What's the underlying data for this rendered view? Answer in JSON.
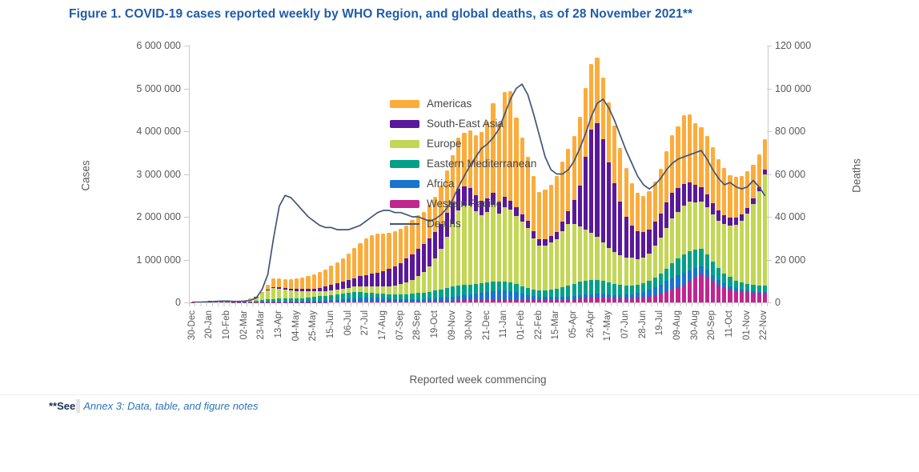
{
  "figure": {
    "title": "Figure 1. COVID-19 cases reported weekly by WHO Region, and global deaths, as of 28 November 2021**"
  },
  "axes": {
    "left_title": "Cases",
    "right_title": "Deaths",
    "x_title": "Reported week commencing",
    "y_left_ticks": [
      "0",
      "1 000 000",
      "2 000 000",
      "3 000 000",
      "4 000 000",
      "5 000 000",
      "6 000 000"
    ],
    "y_right_ticks": [
      "0",
      "20 000",
      "40 000",
      "60 000",
      "80 000",
      "100 000",
      "120 000"
    ]
  },
  "footnote": {
    "prefix": "**See",
    "link_text": "Annex 3: Data, table, and figure notes"
  },
  "chart_data": {
    "type": "bar",
    "subtype": "stacked-weekly-bars-with-deaths-line",
    "title": "COVID-19 cases reported weekly by WHO Region, and global deaths, as of 28 November 2021",
    "xlabel": "Reported week commencing",
    "ylabel_left": "Cases",
    "ylabel_right": "Deaths",
    "cases_axis": {
      "min": 0,
      "max": 6000000
    },
    "deaths_axis": {
      "min": 0,
      "max": 120000
    },
    "weeks_count": 100,
    "x_tick_every": 3,
    "x_tick_labels": [
      "30-Dec",
      "20-Jan",
      "10-Feb",
      "02-Mar",
      "23-Mar",
      "13-Apr",
      "04-May",
      "25-May",
      "15-Jun",
      "06-Jul",
      "27-Jul",
      "17-Aug",
      "07-Sep",
      "28-Sep",
      "19-Oct",
      "09-Nov",
      "30-Nov",
      "21-Dec",
      "11-Jan",
      "01-Feb",
      "22-Feb",
      "15-Mar",
      "05-Apr",
      "26-Apr",
      "17-May",
      "07-Jun",
      "28-Jun",
      "19-Jul",
      "09-Aug",
      "30-Aug",
      "20-Sep",
      "11-Oct",
      "01-Nov",
      "22-Nov"
    ],
    "cases_unit": "millions of cases per week (stacked, bottom to top)",
    "series": [
      {
        "name": "Western Pacific",
        "color": "#C0268F",
        "values": [
          0.005,
          0.01,
          0.02,
          0.025,
          0.03,
          0.015,
          0.01,
          0.005,
          0.004,
          0.003,
          0.003,
          0.004,
          0.006,
          0.008,
          0.008,
          0.006,
          0.005,
          0.005,
          0.005,
          0.005,
          0.006,
          0.007,
          0.008,
          0.009,
          0.01,
          0.012,
          0.014,
          0.016,
          0.018,
          0.02,
          0.022,
          0.025,
          0.03,
          0.03,
          0.03,
          0.028,
          0.026,
          0.025,
          0.025,
          0.026,
          0.028,
          0.03,
          0.033,
          0.036,
          0.04,
          0.045,
          0.05,
          0.055,
          0.06,
          0.06,
          0.062,
          0.065,
          0.068,
          0.07,
          0.072,
          0.07,
          0.065,
          0.06,
          0.055,
          0.05,
          0.048,
          0.05,
          0.055,
          0.06,
          0.065,
          0.07,
          0.08,
          0.09,
          0.1,
          0.11,
          0.12,
          0.12,
          0.11,
          0.1,
          0.1,
          0.1,
          0.1,
          0.11,
          0.12,
          0.14,
          0.17,
          0.2,
          0.25,
          0.3,
          0.35,
          0.42,
          0.5,
          0.58,
          0.65,
          0.6,
          0.5,
          0.42,
          0.35,
          0.3,
          0.27,
          0.25,
          0.24,
          0.23,
          0.22,
          0.22
        ]
      },
      {
        "name": "Africa",
        "color": "#1874CC",
        "values": [
          0.001,
          0.001,
          0.001,
          0.001,
          0.001,
          0.001,
          0.001,
          0.001,
          0.001,
          0.002,
          0.003,
          0.005,
          0.008,
          0.01,
          0.015,
          0.02,
          0.02,
          0.02,
          0.025,
          0.025,
          0.03,
          0.03,
          0.035,
          0.04,
          0.045,
          0.05,
          0.06,
          0.07,
          0.08,
          0.09,
          0.09,
          0.085,
          0.08,
          0.07,
          0.06,
          0.055,
          0.05,
          0.045,
          0.045,
          0.05,
          0.05,
          0.055,
          0.06,
          0.07,
          0.08,
          0.09,
          0.1,
          0.11,
          0.12,
          0.14,
          0.16,
          0.18,
          0.2,
          0.21,
          0.21,
          0.2,
          0.18,
          0.15,
          0.12,
          0.1,
          0.08,
          0.075,
          0.07,
          0.07,
          0.07,
          0.07,
          0.075,
          0.08,
          0.08,
          0.08,
          0.08,
          0.08,
          0.075,
          0.07,
          0.07,
          0.08,
          0.09,
          0.11,
          0.13,
          0.16,
          0.19,
          0.22,
          0.25,
          0.27,
          0.28,
          0.27,
          0.25,
          0.22,
          0.19,
          0.16,
          0.13,
          0.11,
          0.09,
          0.08,
          0.06,
          0.05,
          0.04,
          0.035,
          0.03,
          0.03
        ]
      },
      {
        "name": "Eastern Mediterranean",
        "color": "#00A188",
        "values": [
          0.001,
          0.001,
          0.001,
          0.001,
          0.001,
          0.001,
          0.002,
          0.004,
          0.008,
          0.012,
          0.015,
          0.02,
          0.04,
          0.05,
          0.06,
          0.06,
          0.06,
          0.06,
          0.06,
          0.07,
          0.08,
          0.09,
          0.1,
          0.11,
          0.12,
          0.13,
          0.14,
          0.14,
          0.14,
          0.13,
          0.12,
          0.11,
          0.1,
          0.1,
          0.1,
          0.1,
          0.11,
          0.12,
          0.13,
          0.14,
          0.15,
          0.16,
          0.18,
          0.2,
          0.22,
          0.24,
          0.25,
          0.25,
          0.24,
          0.23,
          0.22,
          0.22,
          0.21,
          0.2,
          0.2,
          0.19,
          0.18,
          0.17,
          0.16,
          0.15,
          0.15,
          0.16,
          0.17,
          0.19,
          0.22,
          0.25,
          0.28,
          0.31,
          0.33,
          0.34,
          0.33,
          0.31,
          0.28,
          0.26,
          0.24,
          0.22,
          0.2,
          0.19,
          0.19,
          0.2,
          0.22,
          0.25,
          0.29,
          0.34,
          0.39,
          0.43,
          0.45,
          0.44,
          0.41,
          0.37,
          0.32,
          0.28,
          0.24,
          0.21,
          0.18,
          0.16,
          0.15,
          0.14,
          0.14,
          0.15
        ]
      },
      {
        "name": "Europe",
        "color": "#C3D655",
        "values": [
          0.001,
          0.001,
          0.001,
          0.001,
          0.001,
          0.001,
          0.002,
          0.004,
          0.008,
          0.02,
          0.05,
          0.09,
          0.15,
          0.22,
          0.25,
          0.24,
          0.22,
          0.2,
          0.18,
          0.16,
          0.14,
          0.13,
          0.12,
          0.11,
          0.11,
          0.11,
          0.11,
          0.12,
          0.13,
          0.14,
          0.15,
          0.16,
          0.17,
          0.18,
          0.19,
          0.21,
          0.24,
          0.28,
          0.33,
          0.4,
          0.48,
          0.6,
          0.75,
          0.95,
          1.2,
          1.45,
          1.75,
          1.85,
          1.85,
          1.7,
          1.6,
          1.65,
          1.8,
          1.6,
          1.75,
          1.7,
          1.6,
          1.5,
          1.4,
          1.2,
          1.05,
          1.05,
          1.1,
          1.15,
          1.3,
          1.45,
          1.4,
          1.3,
          1.2,
          1.1,
          1.0,
          0.9,
          0.8,
          0.75,
          0.7,
          0.65,
          0.65,
          0.6,
          0.6,
          0.65,
          0.75,
          0.85,
          0.95,
          1.05,
          1.1,
          1.15,
          1.15,
          1.1,
          1.1,
          1.1,
          1.1,
          1.1,
          1.15,
          1.2,
          1.3,
          1.45,
          1.65,
          1.9,
          2.2,
          2.6
        ]
      },
      {
        "name": "South-East Asia",
        "color": "#5A189A",
        "values": [
          0.001,
          0.001,
          0.001,
          0.001,
          0.001,
          0.001,
          0.001,
          0.002,
          0.003,
          0.005,
          0.008,
          0.01,
          0.012,
          0.015,
          0.02,
          0.025,
          0.03,
          0.035,
          0.04,
          0.05,
          0.06,
          0.07,
          0.08,
          0.1,
          0.12,
          0.14,
          0.16,
          0.18,
          0.2,
          0.23,
          0.26,
          0.29,
          0.32,
          0.35,
          0.4,
          0.45,
          0.5,
          0.55,
          0.6,
          0.64,
          0.66,
          0.65,
          0.62,
          0.58,
          0.55,
          0.52,
          0.5,
          0.45,
          0.4,
          0.37,
          0.34,
          0.31,
          0.28,
          0.26,
          0.24,
          0.22,
          0.2,
          0.18,
          0.17,
          0.16,
          0.15,
          0.15,
          0.16,
          0.18,
          0.23,
          0.3,
          0.55,
          0.95,
          1.7,
          2.4,
          2.65,
          2.4,
          2.0,
          1.6,
          1.25,
          0.95,
          0.75,
          0.65,
          0.6,
          0.55,
          0.55,
          0.55,
          0.6,
          0.6,
          0.55,
          0.5,
          0.45,
          0.4,
          0.35,
          0.3,
          0.27,
          0.24,
          0.21,
          0.19,
          0.17,
          0.15,
          0.13,
          0.12,
          0.11,
          0.1
        ]
      },
      {
        "name": "Americas",
        "color": "#FBAC3B",
        "values": [
          0.001,
          0.001,
          0.001,
          0.001,
          0.001,
          0.001,
          0.001,
          0.002,
          0.003,
          0.005,
          0.008,
          0.01,
          0.03,
          0.1,
          0.2,
          0.21,
          0.2,
          0.22,
          0.25,
          0.27,
          0.3,
          0.33,
          0.36,
          0.4,
          0.45,
          0.5,
          0.55,
          0.62,
          0.7,
          0.78,
          0.85,
          0.9,
          0.9,
          0.88,
          0.85,
          0.82,
          0.8,
          0.78,
          0.8,
          0.78,
          0.75,
          0.78,
          0.82,
          0.9,
          1.0,
          1.1,
          1.2,
          1.25,
          1.35,
          1.4,
          1.6,
          1.8,
          2.1,
          1.85,
          2.45,
          2.55,
          2.1,
          1.8,
          1.5,
          1.3,
          1.1,
          1.15,
          1.2,
          1.3,
          1.4,
          1.45,
          1.5,
          1.6,
          1.6,
          1.55,
          1.55,
          1.45,
          1.4,
          1.35,
          1.25,
          1.15,
          1.0,
          0.9,
          0.85,
          0.9,
          0.95,
          1.05,
          1.2,
          1.35,
          1.45,
          1.6,
          1.6,
          1.45,
          1.4,
          1.35,
          1.3,
          1.2,
          1.1,
          1.0,
          0.95,
          0.9,
          0.85,
          0.8,
          0.75,
          0.72
        ]
      }
    ],
    "line": {
      "name": "Deaths",
      "color": "#415577",
      "axis": "right",
      "unit": "thousands of deaths per week",
      "values": [
        0.1,
        0.1,
        0.2,
        0.3,
        0.5,
        0.6,
        0.6,
        0.5,
        0.5,
        0.6,
        1,
        2,
        6,
        13,
        30,
        45,
        50,
        49,
        46,
        43,
        40,
        38,
        36,
        35,
        35,
        34,
        34,
        34,
        35,
        36,
        38,
        40,
        42,
        43,
        43,
        42,
        42,
        41,
        40,
        40,
        39,
        38,
        39,
        41,
        44,
        48,
        54,
        59,
        64,
        68,
        72,
        74,
        77,
        81,
        88,
        95,
        100,
        102,
        97,
        88,
        78,
        68,
        62,
        60,
        60,
        62,
        66,
        72,
        79,
        87,
        93,
        95,
        91,
        85,
        78,
        71,
        65,
        59,
        55,
        53,
        55,
        58,
        62,
        65,
        67,
        68,
        69,
        70,
        71,
        67,
        62,
        58,
        55,
        56,
        54,
        53,
        54,
        57,
        54,
        50
      ]
    },
    "legend_order": [
      "Americas",
      "South-East Asia",
      "Europe",
      "Eastern Mediterranean",
      "Africa",
      "Western Pacific",
      "Deaths"
    ],
    "legend_position": "top-left-inside",
    "grid": "off"
  }
}
